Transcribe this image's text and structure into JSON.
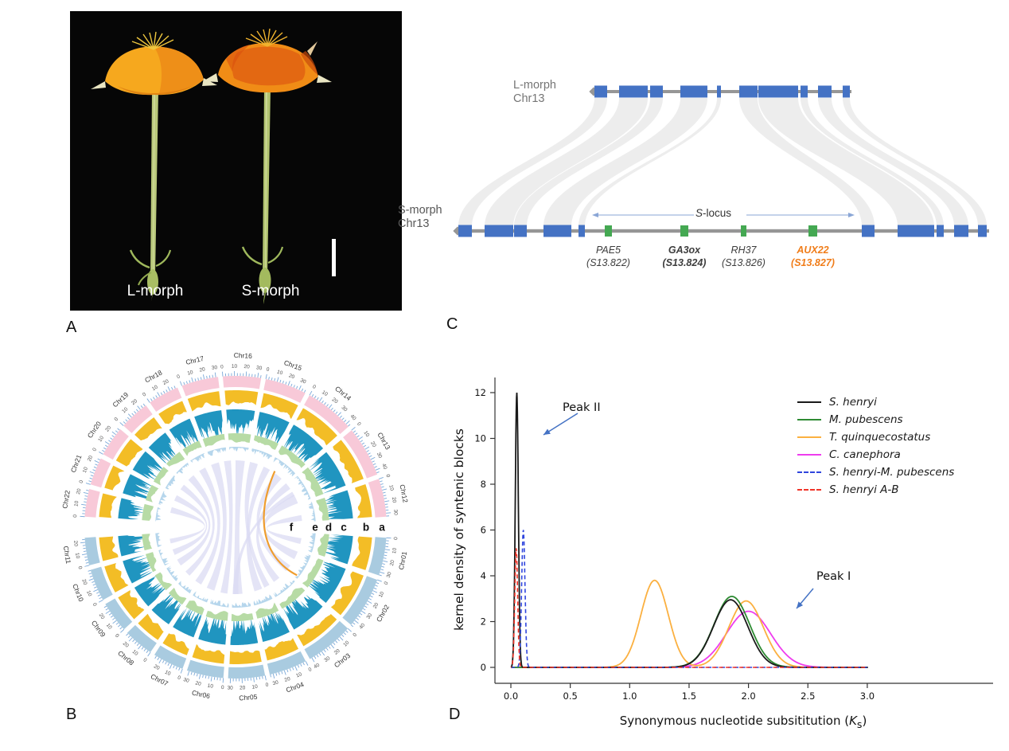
{
  "panels": {
    "a_label": "A",
    "b_label": "B",
    "c_label": "C",
    "d_label": "D"
  },
  "panel_a": {
    "left_flower_label": "L-morph",
    "right_flower_label": "S-morph"
  },
  "panel_b": {
    "track_labels": [
      "f",
      "e",
      "d",
      "c",
      "b",
      "a"
    ],
    "chromosomes": [
      {
        "name": "Chr01",
        "len": 33,
        "group": "blue"
      },
      {
        "name": "Chr02",
        "len": 45,
        "group": "blue"
      },
      {
        "name": "Chr03",
        "len": 42,
        "group": "blue"
      },
      {
        "name": "Chr04",
        "len": 33,
        "group": "blue"
      },
      {
        "name": "Chr05",
        "len": 32,
        "group": "blue"
      },
      {
        "name": "Chr06",
        "len": 32,
        "group": "blue"
      },
      {
        "name": "Chr07",
        "len": 27,
        "group": "blue"
      },
      {
        "name": "Chr08",
        "len": 26,
        "group": "blue"
      },
      {
        "name": "Chr09",
        "len": 27,
        "group": "blue"
      },
      {
        "name": "Chr10",
        "len": 28,
        "group": "blue"
      },
      {
        "name": "Chr11",
        "len": 24,
        "group": "blue"
      },
      {
        "name": "Chr12",
        "len": 33,
        "group": "pink"
      },
      {
        "name": "Chr13",
        "len": 44,
        "group": "pink"
      },
      {
        "name": "Chr14",
        "len": 43,
        "group": "pink"
      },
      {
        "name": "Chr15",
        "len": 36,
        "group": "pink"
      },
      {
        "name": "Chr16",
        "len": 33,
        "group": "pink"
      },
      {
        "name": "Chr17",
        "len": 32,
        "group": "pink"
      },
      {
        "name": "Chr18",
        "len": 27,
        "group": "pink"
      },
      {
        "name": "Chr19",
        "len": 26,
        "group": "pink"
      },
      {
        "name": "Chr20",
        "len": 26,
        "group": "pink"
      },
      {
        "name": "Chr21",
        "len": 24,
        "group": "pink"
      },
      {
        "name": "Chr22",
        "len": 24,
        "group": "pink"
      }
    ],
    "colors": {
      "pink": "#f8c9d8",
      "blue": "#a9cbe0",
      "track_b": "#f3bd26",
      "track_c": "#2095c0",
      "track_d": "#b7dba5",
      "track_e": "#aed2ea",
      "links": "#dadaf2",
      "highlight_link": "#ef9d2e",
      "tick": "#7aa8d8"
    }
  },
  "panel_c": {
    "top_chrom_label": [
      "L-morph",
      "Chr13"
    ],
    "bottom_chrom_label": [
      "S-morph",
      "Chr13"
    ],
    "slocus": {
      "italic": "S",
      "rest": "-locus"
    },
    "genes": [
      {
        "name": "PAE5",
        "id": "(S13.822)",
        "bold": false,
        "color": "#3d3d3d"
      },
      {
        "name": "GA3ox",
        "id": "(S13.824)",
        "bold": true,
        "color": "#3d3d3d"
      },
      {
        "name": "RH37",
        "id": "(S13.826)",
        "bold": false,
        "color": "#3d3d3d"
      },
      {
        "name": "AUX22",
        "id": "(S13.827)",
        "bold": true,
        "color": "#f07d1a"
      }
    ],
    "colors": {
      "gene_box": "#44a852",
      "synteny_box": "#4472c4",
      "bar": "#969696",
      "ribbon": "#ebebeb",
      "arrow": "#8aa6d6"
    }
  },
  "chart_data": {
    "type": "line",
    "title": "",
    "xlabel": "Synonymous nucleotide subsititution (Ks)",
    "xlabel_prefix": "Synonymous nucleotide subsititution (",
    "xlabel_k": "K",
    "xlabel_sub": "s",
    "xlabel_suffix": ")",
    "ylabel": "kernel density of syntenic blocks",
    "xlim": [
      0.0,
      3.0
    ],
    "ylim": [
      0,
      12
    ],
    "xticks": [
      "0.0",
      "0.5",
      "1.0",
      "1.5",
      "2.0",
      "2.5",
      "3.0"
    ],
    "yticks": [
      "0",
      "2",
      "4",
      "6",
      "8",
      "10",
      "12"
    ],
    "grid": false,
    "legend_position": "upper right",
    "annotations": [
      {
        "text": "Peak II",
        "points_to_x": 0.05,
        "points_to_y": 12
      },
      {
        "text": "Peak I",
        "points_to_x": 1.85,
        "points_to_y": 3.0
      }
    ],
    "series": [
      {
        "name": "S. henryi",
        "color": "#1a1a1a",
        "dash": "solid",
        "peaks": [
          {
            "mu": 0.05,
            "sigma": 0.013,
            "height": 12.0
          },
          {
            "mu": 1.85,
            "sigma": 0.145,
            "height": 2.95
          }
        ]
      },
      {
        "name": "M. pubescens",
        "color": "#2e8b33",
        "dash": "solid",
        "peaks": [
          {
            "mu": 1.86,
            "sigma": 0.15,
            "height": 3.1
          }
        ]
      },
      {
        "name": "T. quinquecostatus",
        "color": "#fbb040",
        "dash": "solid",
        "peaks": [
          {
            "mu": 1.21,
            "sigma": 0.115,
            "height": 3.8
          },
          {
            "mu": 1.98,
            "sigma": 0.145,
            "height": 2.9
          }
        ]
      },
      {
        "name": "C. canephora",
        "color": "#ee3cee",
        "dash": "solid",
        "peaks": [
          {
            "mu": 2.0,
            "sigma": 0.185,
            "height": 2.45
          }
        ]
      },
      {
        "name": "S. henryi-M. pubescens",
        "color": "#2f45dd",
        "dash": "dashed",
        "peaks": [
          {
            "mu": 0.105,
            "sigma": 0.014,
            "height": 6.0
          }
        ]
      },
      {
        "name": "S. henryi A-B",
        "color": "#f03428",
        "dash": "dashed",
        "peaks": [
          {
            "mu": 0.045,
            "sigma": 0.012,
            "height": 5.2
          }
        ]
      }
    ]
  }
}
